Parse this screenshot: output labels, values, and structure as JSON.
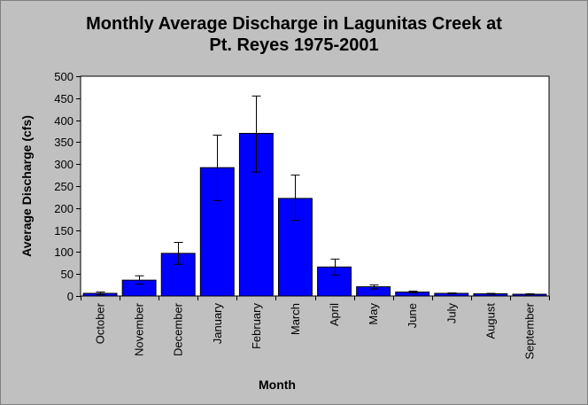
{
  "chart_data": {
    "type": "bar",
    "title_lines": [
      "Monthly Average Discharge in Lagunitas Creek at",
      "Pt. Reyes 1975-2001"
    ],
    "xlabel": "Month",
    "ylabel": "Average Discharge (cfs)",
    "ylim": [
      0,
      500
    ],
    "yticks": [
      0,
      50,
      100,
      150,
      200,
      250,
      300,
      350,
      400,
      450,
      500
    ],
    "grid": false,
    "bar_color": "#0000ff",
    "categories": [
      "October",
      "November",
      "December",
      "January",
      "February",
      "March",
      "April",
      "May",
      "June",
      "July",
      "August",
      "September"
    ],
    "values": [
      6,
      36,
      97,
      292,
      370,
      222,
      66,
      21,
      9,
      6,
      5,
      4
    ],
    "error_low": [
      3,
      27,
      72,
      217,
      282,
      172,
      48,
      16,
      7,
      5,
      4,
      3
    ],
    "error_high": [
      9,
      46,
      122,
      366,
      455,
      275,
      84,
      25,
      11,
      7,
      6,
      5
    ]
  }
}
